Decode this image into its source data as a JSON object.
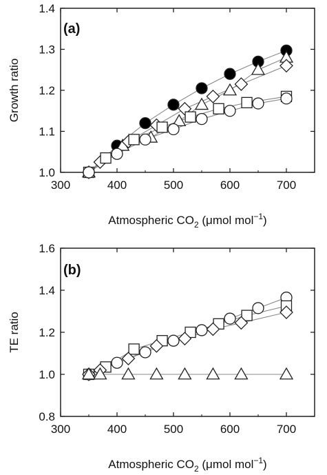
{
  "chart_data": [
    {
      "type": "scatter",
      "panel_label": "(a)",
      "xlabel": {
        "main": "Atmospheric CO",
        "sub": "2",
        "unit_pre": " (μmol mol",
        "sup": "−1",
        "unit_post": ")"
      },
      "ylabel": "Growth ratio",
      "xlim": [
        300,
        750
      ],
      "ylim": [
        1.0,
        1.4
      ],
      "x_ticks": [
        300,
        400,
        500,
        600,
        700
      ],
      "y_ticks": [
        "1.0",
        "1.1",
        "1.2",
        "1.3",
        "1.4"
      ],
      "grid": false,
      "series": [
        {
          "marker": "filled-circle",
          "x": [
            350,
            400,
            450,
            500,
            550,
            600,
            650,
            700
          ],
          "y": [
            1.0,
            1.065,
            1.12,
            1.165,
            1.205,
            1.24,
            1.27,
            1.297
          ]
        },
        {
          "marker": "open-triangle",
          "x": [
            350,
            410,
            460,
            510,
            550,
            600,
            650,
            700
          ],
          "y": [
            1.0,
            1.065,
            1.085,
            1.125,
            1.165,
            1.2,
            1.25,
            1.28
          ]
        },
        {
          "marker": "open-diamond",
          "x": [
            350,
            370,
            420,
            470,
            520,
            570,
            620,
            700
          ],
          "y": [
            1.0,
            1.025,
            1.075,
            1.115,
            1.155,
            1.185,
            1.215,
            1.26
          ]
        },
        {
          "marker": "open-square",
          "x": [
            350,
            380,
            430,
            480,
            530,
            580,
            630,
            700
          ],
          "y": [
            1.0,
            1.035,
            1.08,
            1.11,
            1.135,
            1.155,
            1.17,
            1.185
          ]
        },
        {
          "marker": "open-circle",
          "x": [
            350,
            400,
            450,
            500,
            550,
            600,
            650,
            700
          ],
          "y": [
            1.0,
            1.045,
            1.08,
            1.105,
            1.13,
            1.15,
            1.168,
            1.18
          ]
        }
      ]
    },
    {
      "type": "scatter",
      "panel_label": "(b)",
      "xlabel": {
        "main": "Atmospheric CO",
        "sub": "2",
        "unit_pre": " (μmol mol",
        "sup": "−1",
        "unit_post": ")"
      },
      "ylabel": "TE ratio",
      "xlim": [
        300,
        750
      ],
      "ylim": [
        0.8,
        1.6
      ],
      "x_ticks": [
        300,
        400,
        500,
        600,
        700
      ],
      "y_ticks": [
        "0.8",
        "1.0",
        "1.2",
        "1.4",
        "1.6"
      ],
      "grid": false,
      "series": [
        {
          "marker": "open-circle",
          "x": [
            350,
            400,
            450,
            500,
            550,
            600,
            650,
            700
          ],
          "y": [
            1.0,
            1.055,
            1.105,
            1.16,
            1.21,
            1.265,
            1.315,
            1.365
          ]
        },
        {
          "marker": "open-square",
          "x": [
            350,
            380,
            430,
            480,
            530,
            580,
            630,
            700
          ],
          "y": [
            1.0,
            1.035,
            1.12,
            1.16,
            1.2,
            1.24,
            1.28,
            1.325
          ]
        },
        {
          "marker": "open-diamond",
          "x": [
            350,
            370,
            420,
            470,
            520,
            570,
            620,
            700
          ],
          "y": [
            1.0,
            1.02,
            1.075,
            1.135,
            1.17,
            1.215,
            1.245,
            1.295
          ]
        },
        {
          "marker": "open-triangle",
          "x": [
            350,
            370,
            420,
            470,
            520,
            570,
            620,
            700
          ],
          "y": [
            1.0,
            1.0,
            1.0,
            1.0,
            1.0,
            1.0,
            1.0,
            1.0
          ]
        }
      ]
    }
  ]
}
